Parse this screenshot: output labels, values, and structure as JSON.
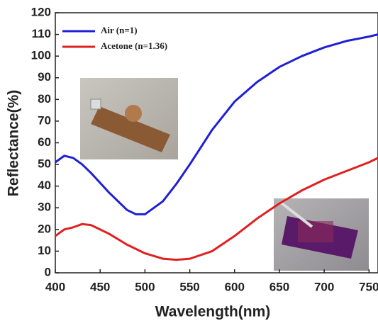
{
  "chart_data": {
    "type": "line",
    "x_label": "Wavelength(nm)",
    "y_label": "Reflectance(%)",
    "x": [
      400,
      410,
      420,
      430,
      440,
      460,
      480,
      490,
      500,
      520,
      535,
      550,
      575,
      600,
      625,
      650,
      675,
      700,
      725,
      750,
      760
    ],
    "series": [
      {
        "name": "Air (n=1)",
        "color": "#1f1fd6",
        "values": [
          51,
          54,
          53,
          50,
          46,
          37,
          29,
          27,
          27,
          33,
          41,
          50,
          66,
          79,
          88,
          95,
          100,
          104,
          107,
          109,
          110
        ]
      },
      {
        "name": "Acetone (n=1.36)",
        "color": "#e02020",
        "values": [
          17,
          20,
          21,
          22.5,
          22,
          18,
          13,
          11,
          9,
          6.5,
          6,
          6.5,
          10,
          17,
          25,
          32,
          38,
          43,
          47,
          51,
          53
        ]
      }
    ],
    "xlim": [
      400,
      760
    ],
    "ylim": [
      0,
      120
    ],
    "xticks": [
      400,
      450,
      500,
      550,
      600,
      650,
      700,
      750
    ],
    "yticks": [
      0,
      10,
      20,
      30,
      40,
      50,
      60,
      70,
      80,
      90,
      100,
      110,
      120
    ],
    "legend": "upper-left"
  }
}
